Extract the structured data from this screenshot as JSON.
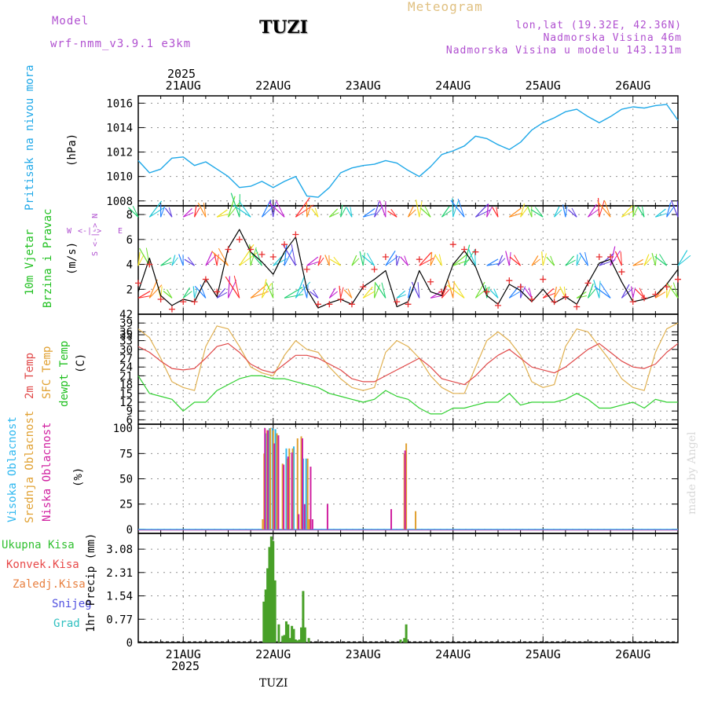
{
  "header": {
    "model_label": "Model",
    "model_name": "wrf-nmm_v3.9.1 e3km",
    "station": "TUZI",
    "title": "Meteogram",
    "lonlat": "lon,lat (19.32E, 42.36N)",
    "elevation": "Nadmorska Visina 46m",
    "model_elevation": "Nadmorska Visina u modelu 143.131m",
    "footer_station": "TUZI",
    "watermark": "made by Angel",
    "year_top": "2025",
    "year_bottom": "2025"
  },
  "colors": {
    "pressure": "#1fa8e8",
    "wind_speed": "#000000",
    "gust": "#e83030",
    "temp_2m": "#e04848",
    "temp_sfc": "#e0b050",
    "dewpoint": "#30d030",
    "cloud_high": "#2eb8f0",
    "cloud_mid": "#e0a030",
    "cloud_low": "#d020a0",
    "precip_total": "#48a028",
    "precip_conv": "#e84848",
    "precip_grid": "#e88040",
    "snow": "#5050e0",
    "hail": "#30c0c0",
    "header_purple": "#b050d0",
    "header_tan": "#e0c080"
  },
  "x_axis": {
    "dates": [
      "21AUG",
      "22AUG",
      "23AUG",
      "24AUG",
      "25AUG",
      "26AUG"
    ],
    "date_hours": [
      12,
      36,
      60,
      84,
      108,
      132
    ],
    "range_hours": [
      0,
      144
    ]
  },
  "labels": {
    "pressure": [
      "Pritisak na nivou mora"
    ],
    "pressure_unit": "(hPa)",
    "wind": [
      "10m Vjetar",
      "Brzina i Pravac"
    ],
    "wind_unit": "(m/s)",
    "wind_compass_ns": "S <-|-> N",
    "wind_compass_w": "W",
    "wind_compass_e": "E",
    "wind_compass_arrow": "<-|->",
    "temp_2m": "2m Temp",
    "temp_sfc": "SFC Temp",
    "temp_dew": "dewpt Temp",
    "temp_unit": "(C)",
    "cloud_high": "Visoka Oblacnost",
    "cloud_mid": "Srednja Oblacnost",
    "cloud_low": "Niska Oblacnost",
    "cloud_unit": "(%)",
    "precip_total": "Ukupna Kisa",
    "precip_conv": "Konvek.Kisa",
    "precip_grid": "Zaledj.Kisa",
    "precip_snow": "Snijeg",
    "precip_hail": "Grad",
    "precip_unit": "1hr Precip (mm)"
  },
  "chart_data": [
    {
      "type": "line",
      "name": "pressure",
      "ylabel": "(hPa)",
      "ylim": [
        1007.6,
        1016.6
      ],
      "yticks": [
        1008,
        1010,
        1012,
        1014,
        1016
      ],
      "x": [
        0,
        3,
        6,
        9,
        12,
        15,
        18,
        21,
        24,
        27,
        30,
        33,
        36,
        39,
        42,
        45,
        48,
        51,
        54,
        57,
        60,
        63,
        66,
        69,
        72,
        75,
        78,
        81,
        84,
        87,
        90,
        93,
        96,
        99,
        102,
        105,
        108,
        111,
        114,
        117,
        120,
        123,
        126,
        129,
        132,
        135,
        138,
        141,
        144
      ],
      "values": [
        1011.3,
        1010.3,
        1010.6,
        1011.5,
        1011.6,
        1010.9,
        1011.2,
        1010.6,
        1010.0,
        1009.1,
        1009.2,
        1009.6,
        1009.1,
        1009.6,
        1010.0,
        1008.4,
        1008.3,
        1009.1,
        1010.3,
        1010.7,
        1010.9,
        1011.0,
        1011.3,
        1011.1,
        1010.5,
        1010.0,
        1010.8,
        1011.8,
        1012.1,
        1012.5,
        1013.3,
        1013.1,
        1012.6,
        1012.2,
        1012.8,
        1013.8,
        1014.4,
        1014.8,
        1015.3,
        1015.5,
        1014.9,
        1014.4,
        1014.9,
        1015.5,
        1015.7,
        1015.6,
        1015.8,
        1015.9,
        1014.6
      ]
    },
    {
      "type": "line",
      "name": "wind_10m",
      "ylabel": "(m/s)",
      "ylim": [
        0,
        8.7
      ],
      "yticks": [
        2,
        4,
        6,
        8
      ],
      "x": [
        0,
        3,
        6,
        9,
        12,
        15,
        18,
        21,
        24,
        27,
        30,
        33,
        36,
        39,
        42,
        45,
        48,
        51,
        54,
        57,
        60,
        63,
        66,
        69,
        72,
        75,
        78,
        81,
        84,
        87,
        90,
        93,
        96,
        99,
        102,
        105,
        108,
        111,
        114,
        117,
        120,
        123,
        126,
        129,
        132,
        135,
        138,
        141,
        144
      ],
      "speed": [
        1.8,
        4.5,
        1.5,
        0.7,
        1.2,
        1.0,
        2.8,
        1.4,
        5.3,
        6.8,
        5.0,
        4.2,
        3.2,
        5.0,
        6.2,
        2.0,
        0.5,
        0.9,
        1.2,
        0.8,
        2.2,
        2.8,
        3.5,
        0.6,
        1.0,
        3.5,
        1.8,
        1.5,
        4.0,
        5.1,
        3.8,
        1.5,
        0.8,
        2.4,
        1.9,
        1.0,
        2.0,
        0.9,
        1.4,
        0.8,
        2.5,
        4.1,
        4.4,
        2.6,
        1.0,
        1.2,
        1.5,
        2.4,
        3.6
      ],
      "gust": [
        2.5,
        4.0,
        1.2,
        0.4,
        1.0,
        1.0,
        2.8,
        1.8,
        5.2,
        6.0,
        5.2,
        4.8,
        4.6,
        5.6,
        6.4,
        3.6,
        0.8,
        0.8,
        1.2,
        0.8,
        2.2,
        3.6,
        4.6,
        1.0,
        0.8,
        4.4,
        2.6,
        1.8,
        5.6,
        5.2,
        5.0,
        1.8,
        0.7,
        2.7,
        2.2,
        1.2,
        2.8,
        1.0,
        1.4,
        0.6,
        2.5,
        4.6,
        4.6,
        3.4,
        1.0,
        1.3,
        1.6,
        2.2,
        2.8
      ]
    },
    {
      "type": "line",
      "name": "temperature",
      "ylabel": "(C)",
      "ylim": [
        4.5,
        42
      ],
      "yticks": [
        6,
        9,
        12,
        15,
        18,
        21,
        24,
        27,
        30,
        33,
        35,
        36,
        39,
        42
      ],
      "x": [
        0,
        3,
        6,
        9,
        12,
        15,
        18,
        21,
        24,
        27,
        30,
        33,
        36,
        39,
        42,
        45,
        48,
        51,
        54,
        57,
        60,
        63,
        66,
        69,
        72,
        75,
        78,
        81,
        84,
        87,
        90,
        93,
        96,
        99,
        102,
        105,
        108,
        111,
        114,
        117,
        120,
        123,
        126,
        129,
        132,
        135,
        138,
        141,
        144
      ],
      "temp_2m": [
        31,
        29,
        26,
        23.5,
        23,
        23.5,
        27,
        31,
        32,
        29,
        25,
        23,
        22,
        25,
        28,
        28,
        27,
        25,
        23,
        20,
        19,
        19,
        21,
        23,
        25,
        27,
        24,
        20,
        19,
        18,
        21,
        25,
        28,
        30,
        27,
        24,
        23,
        22,
        24,
        27,
        30,
        32,
        29,
        26,
        24,
        23.5,
        25,
        29,
        32
      ],
      "temp_sfc": [
        37,
        34,
        27,
        19,
        17,
        16,
        31,
        38,
        37,
        31,
        24,
        22,
        21,
        28,
        33,
        30,
        29,
        24,
        20,
        17,
        16,
        17,
        29,
        33,
        31,
        27,
        21,
        17,
        15,
        15,
        24,
        33,
        36,
        33,
        28,
        19,
        17,
        18,
        31,
        37,
        36,
        31,
        26,
        20,
        17,
        16,
        29,
        37,
        39
      ],
      "dewpoint": [
        21,
        15,
        14,
        13,
        9,
        12,
        12,
        16,
        18,
        20,
        21,
        21,
        20,
        20,
        19,
        18,
        17,
        15,
        14,
        13,
        12,
        13,
        16,
        14,
        13,
        10,
        8,
        8,
        10,
        10,
        11,
        12,
        12,
        15,
        11,
        12,
        12,
        12,
        13,
        15,
        13,
        10,
        10,
        11,
        12,
        10,
        13,
        12,
        12
      ]
    },
    {
      "type": "bar",
      "name": "cloud_cover",
      "ylabel": "(%)",
      "ylim": [
        -4,
        104
      ],
      "yticks": [
        0,
        25,
        50,
        75,
        100
      ],
      "series": [
        {
          "name": "high",
          "points": [
            [
              34.2,
              95
            ],
            [
              35.0,
              100
            ],
            [
              35.8,
              100
            ],
            [
              36.6,
              99
            ],
            [
              39.5,
              80
            ],
            [
              41.5,
              82
            ],
            [
              44.0,
              70
            ],
            [
              44.8,
              70
            ]
          ]
        },
        {
          "name": "mid",
          "points": [
            [
              33.2,
              10
            ],
            [
              33.6,
              75
            ],
            [
              34.4,
              98
            ],
            [
              35.2,
              100
            ],
            [
              36.0,
              98
            ],
            [
              37.0,
              95
            ],
            [
              38.5,
              65
            ],
            [
              39.8,
              70
            ],
            [
              40.3,
              80
            ],
            [
              41.2,
              80
            ],
            [
              42.5,
              90
            ],
            [
              43.5,
              92
            ],
            [
              45.2,
              70
            ],
            [
              45.6,
              10
            ],
            [
              71.0,
              75
            ],
            [
              71.5,
              85
            ],
            [
              74.0,
              18
            ]
          ]
        },
        {
          "name": "low",
          "points": [
            [
              33.8,
              100
            ],
            [
              34.6,
              98
            ],
            [
              36.3,
              85
            ],
            [
              37.4,
              93
            ],
            [
              38.8,
              64
            ],
            [
              40.0,
              72
            ],
            [
              41.0,
              76
            ],
            [
              42.8,
              15
            ],
            [
              43.8,
              90
            ],
            [
              44.4,
              25
            ],
            [
              46.0,
              62
            ],
            [
              46.5,
              10
            ],
            [
              50.5,
              25
            ],
            [
              67.5,
              20
            ],
            [
              71.2,
              78
            ]
          ]
        }
      ]
    },
    {
      "type": "bar",
      "name": "precipitation_1hr",
      "ylabel": "1hr Precip (mm)",
      "ylim": [
        0,
        3.6
      ],
      "yticks": [
        0,
        0.77,
        1.54,
        2.31,
        3.08
      ],
      "series": [
        {
          "name": "total",
          "points": [
            [
              33.5,
              1.35
            ],
            [
              34.0,
              1.75
            ],
            [
              34.5,
              2.45
            ],
            [
              35.0,
              3.15
            ],
            [
              35.5,
              3.5
            ],
            [
              36.0,
              3.35
            ],
            [
              36.5,
              2.05
            ],
            [
              37.5,
              0.6
            ],
            [
              38.5,
              0.22
            ],
            [
              39.0,
              0.25
            ],
            [
              39.5,
              0.7
            ],
            [
              40.0,
              0.6
            ],
            [
              40.5,
              0.15
            ],
            [
              41.0,
              0.55
            ],
            [
              41.5,
              0.45
            ],
            [
              42.0,
              0.1
            ],
            [
              42.5,
              0.07
            ],
            [
              43.0,
              0.1
            ],
            [
              43.5,
              0.5
            ],
            [
              44.0,
              1.7
            ],
            [
              44.5,
              0.5
            ],
            [
              45.5,
              0.15
            ],
            [
              70.0,
              0.1
            ],
            [
              71.0,
              0.15
            ],
            [
              71.5,
              0.6
            ]
          ]
        }
      ]
    }
  ]
}
